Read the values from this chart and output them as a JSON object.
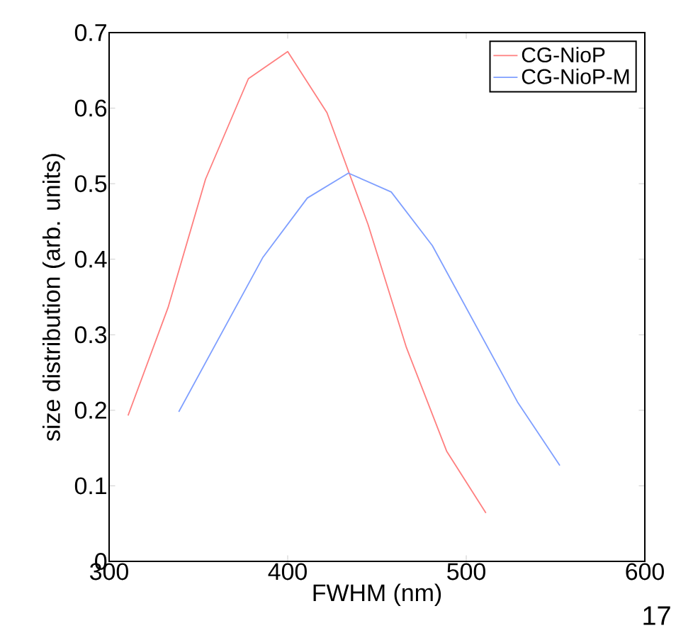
{
  "chart_data": {
    "type": "line",
    "xlabel": "FWHM (nm)",
    "ylabel": "size distribution (arb. units)",
    "xlim": [
      300,
      600
    ],
    "xticks": [
      300,
      400,
      500,
      600
    ],
    "ylim": [
      0,
      0.7
    ],
    "yticks": [
      0,
      0.1,
      0.2,
      0.3,
      0.4,
      0.5,
      0.6,
      0.7
    ],
    "legend": "top right",
    "marker": "none",
    "line_style": "solid",
    "annotations": [
      "17"
    ],
    "series": [
      {
        "name": "CG-NioP",
        "color": "#ff7f7f",
        "x": [
          310.6,
          333,
          354,
          378,
          400,
          422,
          445,
          466.5,
          489,
          511
        ],
        "values": [
          0.193,
          0.336,
          0.506,
          0.639,
          0.675,
          0.594,
          0.446,
          0.283,
          0.146,
          0.064
        ]
      },
      {
        "name": "CG-NioP-M",
        "color": "#7f9fff",
        "x": [
          339,
          386,
          411,
          434,
          458,
          481,
          528.7,
          552.4
        ],
        "values": [
          0.198,
          0.402,
          0.481,
          0.514,
          0.489,
          0.418,
          0.211,
          0.127
        ]
      }
    ]
  }
}
